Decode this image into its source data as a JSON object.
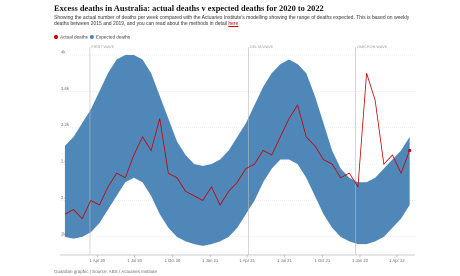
{
  "chart_data": {
    "type": "line-band",
    "title": "Excess deaths in Australia: actual deaths v expected deaths for 2020 to 2022",
    "subtitle": "Showing the actual number of deaths per week compared with the Actuaries Institute's modelling showing the range of deaths expected. This is based on weekly deaths between 2015 and 2019, and you can read about the methods in detail",
    "subtitle_link": "here",
    "source": "Guardian graphic | Source: ABS / Actuaries Institute",
    "x": [
      "2020-01-13",
      "2020-02-03",
      "2020-02-24",
      "2020-03-16",
      "2020-04-06",
      "2020-04-27",
      "2020-05-18",
      "2020-06-08",
      "2020-06-29",
      "2020-07-20",
      "2020-08-10",
      "2020-08-31",
      "2020-09-21",
      "2020-10-12",
      "2020-11-02",
      "2020-11-23",
      "2020-12-14",
      "2021-01-04",
      "2021-01-25",
      "2021-02-15",
      "2021-03-08",
      "2021-03-29",
      "2021-04-19",
      "2021-05-10",
      "2021-05-31",
      "2021-06-21",
      "2021-07-12",
      "2021-08-02",
      "2021-08-23",
      "2021-09-13",
      "2021-10-04",
      "2021-10-25",
      "2021-11-15",
      "2021-12-06",
      "2021-12-27",
      "2022-01-17",
      "2022-02-07",
      "2022-02-28",
      "2022-03-21",
      "2022-04-11",
      "2022-05-02"
    ],
    "series": [
      {
        "name": "Actual deaths",
        "color": "#c70000",
        "values": [
          2250,
          2300,
          2200,
          2400,
          2350,
          2550,
          2700,
          2650,
          2900,
          3100,
          2950,
          3300,
          2700,
          2650,
          2500,
          2450,
          2400,
          2550,
          2350,
          2500,
          2600,
          2750,
          2800,
          2950,
          2900,
          3100,
          3300,
          3450,
          3100,
          3000,
          2850,
          2800,
          2650,
          2700,
          2550,
          3800,
          3500,
          2800,
          2900,
          2700,
          2950
        ]
      },
      {
        "name": "Expected deaths",
        "color": "#4f87b8",
        "high": [
          3000,
          3100,
          3250,
          3400,
          3600,
          3800,
          3950,
          4000,
          4000,
          3950,
          3800,
          3550,
          3300,
          3050,
          2900,
          2800,
          2780,
          2800,
          2850,
          2950,
          3100,
          3250,
          3450,
          3650,
          3800,
          3900,
          3950,
          3900,
          3800,
          3550,
          3250,
          2950,
          2750,
          2650,
          2600,
          2600,
          2650,
          2750,
          2850,
          2950,
          3100
        ],
        "low": [
          2000,
          1980,
          2000,
          2050,
          2150,
          2300,
          2450,
          2600,
          2650,
          2600,
          2450,
          2250,
          2100,
          2000,
          1950,
          1920,
          1900,
          1920,
          1950,
          2000,
          2100,
          2250,
          2400,
          2600,
          2750,
          2850,
          2850,
          2800,
          2650,
          2450,
          2250,
          2100,
          2000,
          1950,
          1920,
          1920,
          1950,
          2000,
          2100,
          2200,
          2350
        ]
      }
    ],
    "annotations": [
      {
        "label": "FIRST WAVE",
        "x": "2020-03-14"
      },
      {
        "label": "DELTA WAVE",
        "x": "2021-04-04"
      },
      {
        "label": "OMICRON WAVE",
        "x": "2021-12-21"
      }
    ],
    "xlim": [
      "2020-01-01",
      "2022-05-15"
    ],
    "xticks": [
      {
        "value": "2020-04-01",
        "label": "1 Apr 20"
      },
      {
        "value": "2020-07-01",
        "label": "1 Jul 20"
      },
      {
        "value": "2020-10-01",
        "label": "1 Oct 20"
      },
      {
        "value": "2021-01-01",
        "label": "1 Jan 21"
      },
      {
        "value": "2021-04-01",
        "label": "1 Apr 21"
      },
      {
        "value": "2021-07-01",
        "label": "1 Jul 21"
      },
      {
        "value": "2021-10-01",
        "label": "1 Oct 21"
      },
      {
        "value": "2022-01-01",
        "label": "1 Jan 22"
      },
      {
        "value": "2022-04-01",
        "label": "1 Apr 22"
      }
    ],
    "ylim": [
      1800,
      4000
    ],
    "yticks": [
      {
        "value": 2000,
        "label": "2k"
      },
      {
        "value": 2400,
        "label": "2.4k"
      },
      {
        "value": 2800,
        "label": "2.8k"
      },
      {
        "value": 3200,
        "label": "3.2k"
      },
      {
        "value": 3600,
        "label": "3.6k"
      },
      {
        "value": 4000,
        "label": "4k"
      }
    ],
    "grid": true
  }
}
